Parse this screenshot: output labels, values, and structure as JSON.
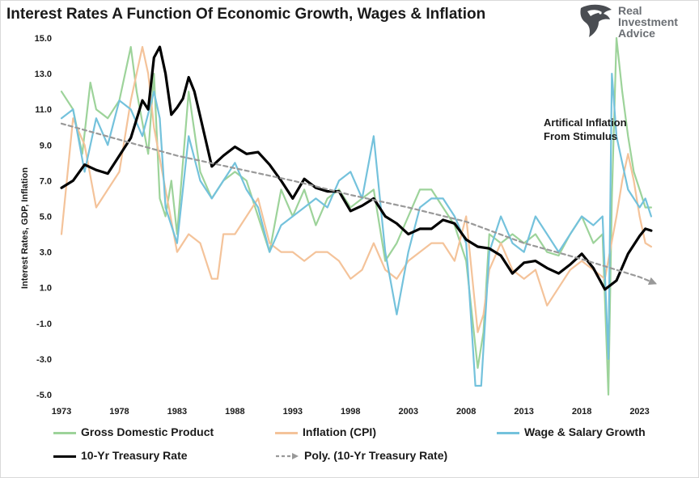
{
  "title": "Interest Rates A Function Of Economic Growth, Wages & Inflation",
  "logo": {
    "lines": [
      "Real",
      "Investment",
      "Advice"
    ],
    "icon": "eagle-head-icon"
  },
  "annotation": {
    "lines": [
      "Artifical Inflation",
      "From Stimulus"
    ]
  },
  "chart_data": {
    "type": "line",
    "title": "Interest Rates A Function Of Economic Growth, Wages & Inflation",
    "xlabel": "",
    "ylabel": "Interest Rates, GDP, Inflation",
    "xlim": [
      1973,
      2024.5
    ],
    "ylim": [
      -5.0,
      15.0
    ],
    "x_ticks": [
      "1973",
      "1978",
      "1983",
      "1988",
      "1993",
      "1998",
      "2003",
      "2008",
      "2013",
      "2018",
      "2023"
    ],
    "y_ticks": [
      "15.0",
      "13.0",
      "11.0",
      "9.0",
      "7.0",
      "5.0",
      "3.0",
      "1.0",
      "-1.0",
      "-3.0",
      "-5.0"
    ],
    "grid": false,
    "legend_position": "bottom",
    "series": [
      {
        "name": "Gross Domestic Product",
        "color": "#9dd39a",
        "width": 2.2,
        "style": "solid",
        "x": [
          1973,
          1974,
          1974.8,
          1975.5,
          1976,
          1977,
          1978,
          1979,
          1979.5,
          1980.5,
          1981,
          1981.5,
          1982,
          1982.5,
          1983,
          1984,
          1985,
          1986,
          1987,
          1988,
          1989,
          1990,
          1991,
          1992,
          1993,
          1994,
          1995,
          1996,
          1997,
          1998,
          1999,
          2000,
          2001,
          2002,
          2003,
          2004,
          2005,
          2006,
          2007,
          2008,
          2009,
          2009.5,
          2010,
          2011,
          2012,
          2013,
          2014,
          2015,
          2016,
          2017,
          2018,
          2019,
          2019.8,
          2020.3,
          2020.6,
          2021,
          2021.5,
          2022,
          2022.5,
          2023,
          2023.5,
          2024
        ],
        "y": [
          12.0,
          11.0,
          8.5,
          12.5,
          11.0,
          10.5,
          11.5,
          14.5,
          12.0,
          8.5,
          13.0,
          6.0,
          5.0,
          7.0,
          4.0,
          12.0,
          7.5,
          6.0,
          7.0,
          7.5,
          7.0,
          5.0,
          3.0,
          6.5,
          5.0,
          6.5,
          4.5,
          6.0,
          6.5,
          5.5,
          6.0,
          6.5,
          2.5,
          3.5,
          5.0,
          6.5,
          6.5,
          5.5,
          4.5,
          2.5,
          -3.5,
          -1.5,
          4.0,
          3.5,
          4.0,
          3.5,
          4.0,
          3.0,
          2.8,
          4.0,
          5.0,
          3.5,
          4.0,
          -5.0,
          6.0,
          15.0,
          12.0,
          9.5,
          7.5,
          6.5,
          5.5,
          5.5
        ]
      },
      {
        "name": "Inflation (CPI)",
        "color": "#f4c39a",
        "width": 2.2,
        "style": "solid",
        "x": [
          1973,
          1974,
          1975,
          1976,
          1977,
          1978,
          1979,
          1980,
          1980.5,
          1981,
          1982,
          1983,
          1984,
          1985,
          1986,
          1986.5,
          1987,
          1988,
          1989,
          1990,
          1991,
          1992,
          1993,
          1994,
          1995,
          1996,
          1997,
          1998,
          1999,
          2000,
          2001,
          2002,
          2003,
          2004,
          2005,
          2006,
          2007,
          2008,
          2009,
          2009.5,
          2010,
          2011,
          2012,
          2013,
          2014,
          2015,
          2016,
          2017,
          2018,
          2019,
          2020,
          2021,
          2021.5,
          2022,
          2022.5,
          2023,
          2023.5,
          2024
        ],
        "y": [
          4.0,
          10.5,
          9.0,
          5.5,
          6.5,
          7.5,
          11.5,
          14.5,
          13.0,
          10.0,
          6.5,
          3.0,
          4.0,
          3.5,
          1.5,
          1.5,
          4.0,
          4.0,
          5.0,
          6.0,
          3.5,
          3.0,
          3.0,
          2.5,
          3.0,
          3.0,
          2.5,
          1.5,
          2.0,
          3.5,
          2.0,
          1.5,
          2.5,
          3.0,
          3.5,
          3.5,
          2.5,
          5.0,
          -1.5,
          -0.5,
          2.0,
          3.5,
          2.0,
          1.5,
          2.0,
          0.0,
          1.0,
          2.0,
          2.5,
          2.0,
          1.5,
          5.0,
          7.0,
          8.5,
          7.0,
          5.0,
          3.5,
          3.3
        ]
      },
      {
        "name": "Wage & Salary Growth",
        "color": "#74c2dc",
        "width": 2.2,
        "style": "solid",
        "x": [
          1973,
          1974,
          1975,
          1976,
          1977,
          1978,
          1979,
          1980,
          1981,
          1981.5,
          1982,
          1983,
          1984,
          1985,
          1986,
          1987,
          1988,
          1989,
          1990,
          1991,
          1992,
          1993,
          1994,
          1995,
          1996,
          1997,
          1998,
          1999,
          2000,
          2001,
          2002,
          2003,
          2004,
          2005,
          2006,
          2007,
          2008,
          2008.8,
          2009.3,
          2010,
          2011,
          2012,
          2013,
          2014,
          2015,
          2016,
          2017,
          2018,
          2019,
          2019.8,
          2020.3,
          2020.6,
          2021,
          2021.5,
          2022,
          2022.5,
          2023,
          2023.5,
          2024
        ],
        "y": [
          10.5,
          11.0,
          7.5,
          10.5,
          9.0,
          11.5,
          11.0,
          9.5,
          12.0,
          10.5,
          5.5,
          3.5,
          9.5,
          7.0,
          6.0,
          7.0,
          8.0,
          6.5,
          5.5,
          3.0,
          4.5,
          5.0,
          5.5,
          6.0,
          5.5,
          7.0,
          7.5,
          6.0,
          9.5,
          3.0,
          -0.5,
          3.0,
          5.5,
          6.0,
          6.0,
          5.0,
          3.5,
          -4.5,
          -4.5,
          3.0,
          5.0,
          3.5,
          3.0,
          5.0,
          4.0,
          3.0,
          4.0,
          5.0,
          4.5,
          5.0,
          -3.0,
          13.0,
          9.5,
          8.0,
          6.5,
          6.0,
          5.5,
          6.0,
          5.0
        ]
      },
      {
        "name": "10-Yr Treasury Rate",
        "color": "#000000",
        "width": 3.2,
        "style": "solid",
        "x": [
          1973,
          1974,
          1975,
          1976,
          1977,
          1978,
          1979,
          1980,
          1980.5,
          1981,
          1981.5,
          1982,
          1982.5,
          1983,
          1983.5,
          1984,
          1984.5,
          1985,
          1986,
          1987,
          1988,
          1989,
          1990,
          1991,
          1992,
          1993,
          1994,
          1995,
          1996,
          1997,
          1998,
          1999,
          2000,
          2001,
          2002,
          2003,
          2004,
          2005,
          2006,
          2007,
          2008,
          2009,
          2010,
          2011,
          2012,
          2013,
          2014,
          2015,
          2016,
          2017,
          2018,
          2019,
          2020,
          2021,
          2022,
          2023,
          2023.5,
          2024
        ],
        "y": [
          6.6,
          7.0,
          7.9,
          7.6,
          7.4,
          8.4,
          9.4,
          11.5,
          11.0,
          13.9,
          14.5,
          13.0,
          10.7,
          11.1,
          11.6,
          12.8,
          12.0,
          10.6,
          7.8,
          8.4,
          8.9,
          8.5,
          8.6,
          7.9,
          7.0,
          6.0,
          7.1,
          6.6,
          6.4,
          6.4,
          5.3,
          5.6,
          6.0,
          5.0,
          4.6,
          4.0,
          4.3,
          4.3,
          4.8,
          4.6,
          3.7,
          3.3,
          3.2,
          2.8,
          1.8,
          2.4,
          2.5,
          2.1,
          1.8,
          2.3,
          2.9,
          2.1,
          0.9,
          1.4,
          2.9,
          3.9,
          4.3,
          4.2
        ]
      },
      {
        "name": "Poly. (10-Yr Treasury Rate)",
        "color": "#999999",
        "width": 2.2,
        "style": "dashed",
        "x": [
          1973,
          1978,
          1983,
          1988,
          1993,
          1998,
          2003,
          2008,
          2013,
          2018,
          2023,
          2024.5
        ],
        "y": [
          10.2,
          9.3,
          8.4,
          7.7,
          7.0,
          6.2,
          5.5,
          4.7,
          3.5,
          2.6,
          1.6,
          1.2
        ]
      }
    ]
  }
}
